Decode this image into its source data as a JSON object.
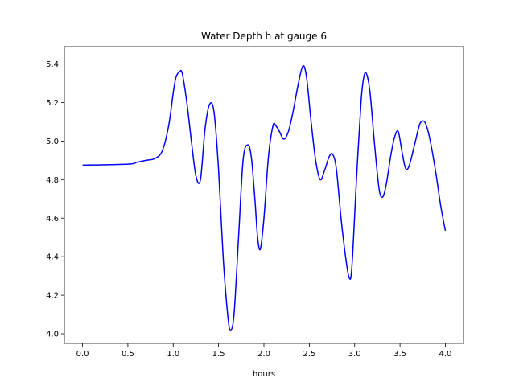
{
  "chart_data": {
    "type": "line",
    "title": "Water Depth h at gauge 6",
    "xlabel": "hours",
    "ylabel": "",
    "xlim": [
      -0.2,
      4.2
    ],
    "ylim": [
      3.95,
      5.49
    ],
    "xticks": [
      0.0,
      0.5,
      1.0,
      1.5,
      2.0,
      2.5,
      3.0,
      3.5,
      4.0
    ],
    "xtick_labels": [
      "0.0",
      "0.5",
      "1.0",
      "1.5",
      "2.0",
      "2.5",
      "3.0",
      "3.5",
      "4.0"
    ],
    "yticks": [
      4.0,
      4.2,
      4.4,
      4.6,
      4.8,
      5.0,
      5.2,
      5.4
    ],
    "ytick_labels": [
      "4.0",
      "4.2",
      "4.4",
      "4.6",
      "4.8",
      "5.0",
      "5.2",
      "5.4"
    ],
    "grid": false,
    "series": [
      {
        "color": "#0000ff",
        "x": [
          0.0,
          0.5,
          0.6,
          0.7,
          0.8,
          0.88,
          0.95,
          1.0,
          1.03,
          1.07,
          1.1,
          1.15,
          1.2,
          1.25,
          1.3,
          1.35,
          1.4,
          1.45,
          1.5,
          1.55,
          1.6,
          1.63,
          1.67,
          1.72,
          1.77,
          1.82,
          1.86,
          1.9,
          1.93,
          1.96,
          2.0,
          2.05,
          2.1,
          2.13,
          2.17,
          2.22,
          2.27,
          2.32,
          2.38,
          2.43,
          2.47,
          2.52,
          2.57,
          2.62,
          2.67,
          2.72,
          2.76,
          2.8,
          2.85,
          2.9,
          2.94,
          2.97,
          3.02,
          3.07,
          3.1,
          3.13,
          3.17,
          3.22,
          3.27,
          3.31,
          3.35,
          3.4,
          3.44,
          3.48,
          3.52,
          3.56,
          3.6,
          3.66,
          3.72,
          3.77,
          3.81,
          3.85,
          3.9,
          3.95,
          4.0
        ],
        "y": [
          4.875,
          4.88,
          4.89,
          4.9,
          4.91,
          4.95,
          5.08,
          5.25,
          5.33,
          5.36,
          5.35,
          5.2,
          5.0,
          4.82,
          4.8,
          5.06,
          5.19,
          5.15,
          4.85,
          4.4,
          4.1,
          4.02,
          4.1,
          4.5,
          4.9,
          4.98,
          4.92,
          4.7,
          4.5,
          4.44,
          4.6,
          4.92,
          5.08,
          5.08,
          5.05,
          5.01,
          5.05,
          5.15,
          5.3,
          5.39,
          5.33,
          5.1,
          4.9,
          4.8,
          4.85,
          4.92,
          4.93,
          4.85,
          4.6,
          4.4,
          4.29,
          4.35,
          4.8,
          5.2,
          5.33,
          5.35,
          5.25,
          4.98,
          4.75,
          4.71,
          4.78,
          4.93,
          5.02,
          5.05,
          4.95,
          4.86,
          4.87,
          4.98,
          5.09,
          5.1,
          5.05,
          4.96,
          4.82,
          4.66,
          4.535
        ]
      }
    ]
  }
}
